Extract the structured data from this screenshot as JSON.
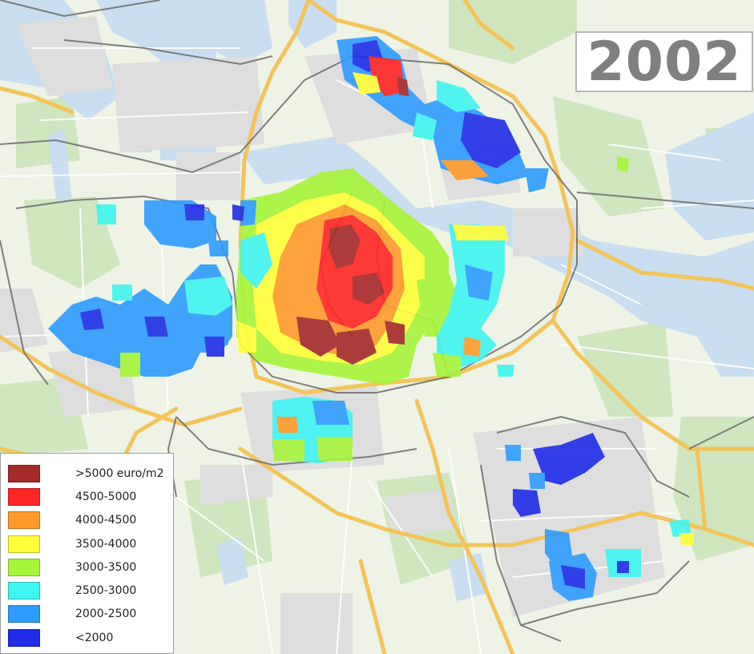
{
  "map": {
    "year_label": "2002",
    "legend": [
      {
        "label": ">5000 euro/m2",
        "color": "#a52a2a"
      },
      {
        "label": "4500-5000",
        "color": "#ff2626"
      },
      {
        "label": "4000-4500",
        "color": "#ff9a2a"
      },
      {
        "label": "3500-4000",
        "color": "#ffff3a"
      },
      {
        "label": "3000-3500",
        "color": "#a6f53a"
      },
      {
        "label": "2500-3000",
        "color": "#3ff5f0"
      },
      {
        "label": "2000-2500",
        "color": "#2e9cff"
      },
      {
        "label": "<2000",
        "color": "#1f2de8"
      }
    ],
    "colors": {
      "background": "#eef3e6",
      "park": "#cfe6bf",
      "water": "#c9def0",
      "built": "#dedede",
      "road": "#f4c45a",
      "border": "#6b6b6b"
    }
  }
}
